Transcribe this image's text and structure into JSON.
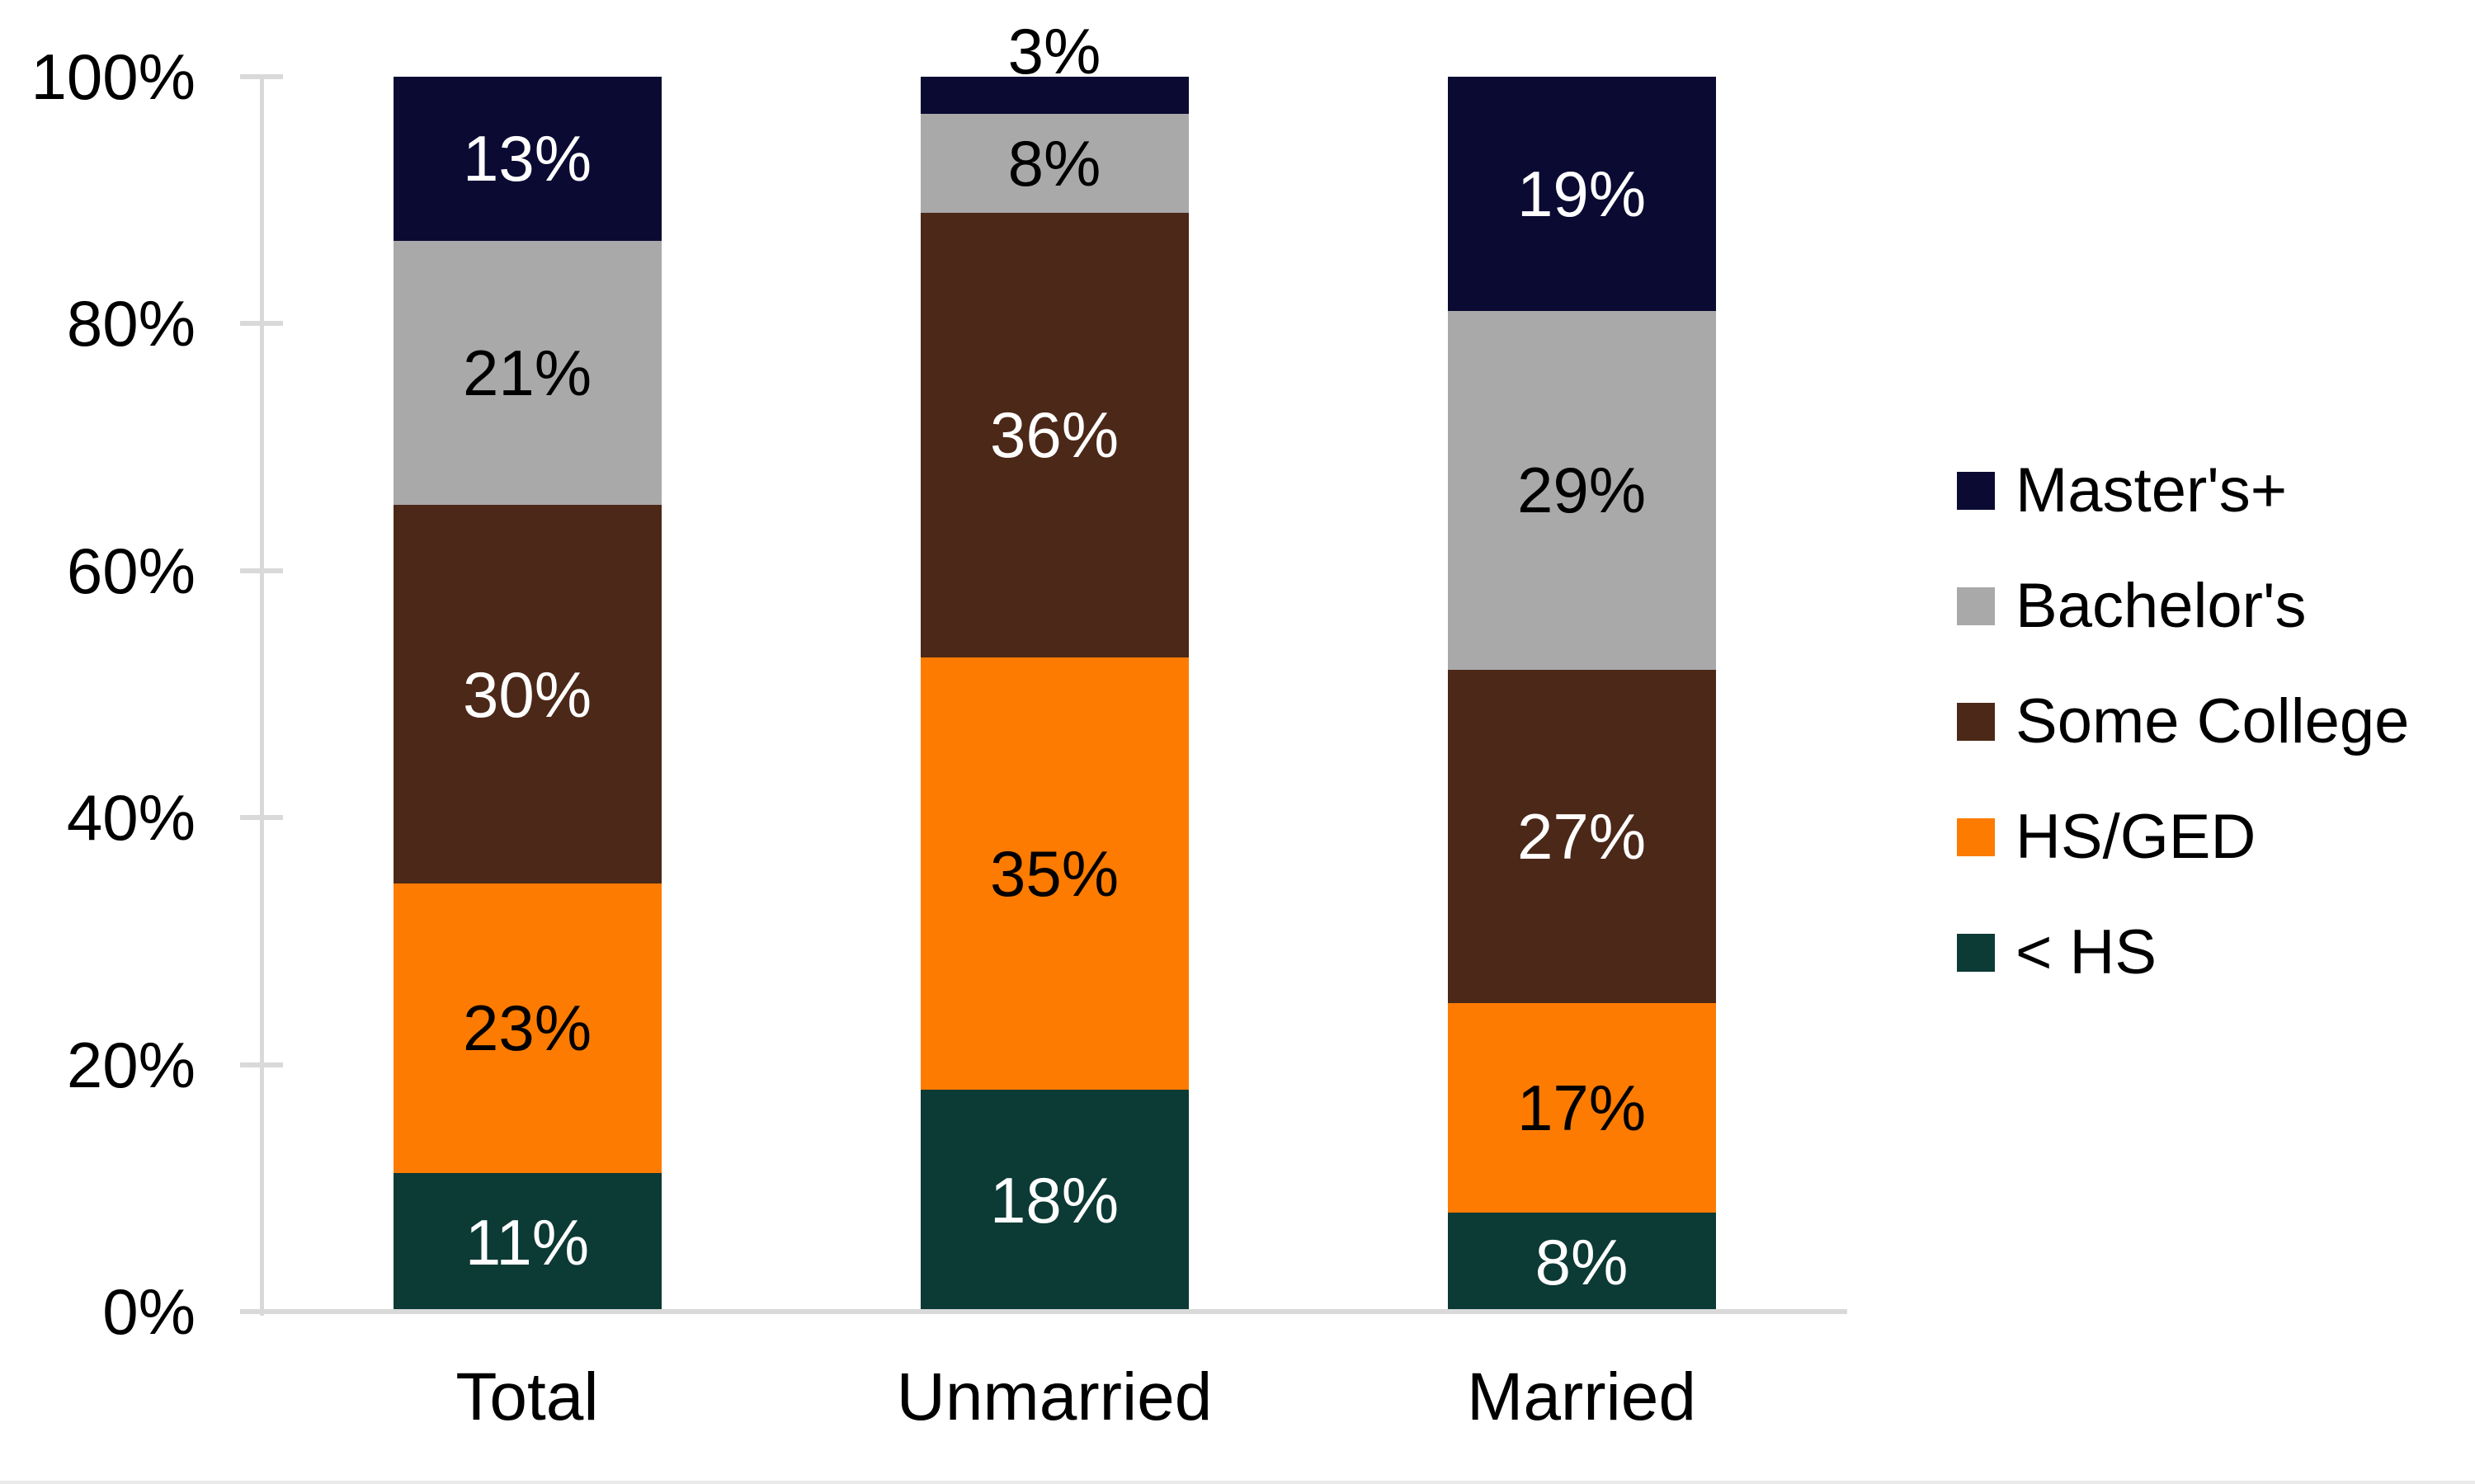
{
  "chart_data": {
    "type": "bar",
    "stacked": true,
    "unit": "%",
    "title": "",
    "categories": [
      "Total",
      "Unmarried",
      "Married"
    ],
    "series": [
      {
        "name": "< HS",
        "color": "#0C3A34",
        "label_color": "#FFFFFF",
        "values": [
          11,
          18,
          8
        ]
      },
      {
        "name": "HS/GED",
        "color": "#FC7B00",
        "label_color": "#000000",
        "values": [
          23,
          35,
          17
        ]
      },
      {
        "name": "Some College",
        "color": "#4C2818",
        "label_color": "#FFFFFF",
        "values": [
          30,
          36,
          27
        ]
      },
      {
        "name": "Bachelor's",
        "color": "#A9A9A9",
        "label_color": "#000000",
        "values": [
          21,
          8,
          29
        ]
      },
      {
        "name": "Master's+",
        "color": "#0A0A33",
        "label_color": "#FFFFFF",
        "values": [
          13,
          3,
          19
        ]
      }
    ],
    "segment_labels": [
      [
        "11%",
        "23%",
        "30%",
        "21%",
        "13%"
      ],
      [
        "18%",
        "35%",
        "36%",
        "8%",
        "3%"
      ],
      [
        "8%",
        "17%",
        "27%",
        "29%",
        "19%"
      ]
    ],
    "y_axis": {
      "min": 0,
      "max": 100,
      "tick_labels": [
        "0%",
        "20%",
        "40%",
        "60%",
        "80%",
        "100%"
      ],
      "grid": false
    },
    "legend": {
      "position": "right",
      "entries_top_to_bottom": [
        "Master's+",
        "Bachelor's",
        "Some College",
        "HS/GED",
        "< HS"
      ]
    },
    "axis_color": "#D9D9D9",
    "text_color": "#000000",
    "background": "#FFFFFF"
  }
}
